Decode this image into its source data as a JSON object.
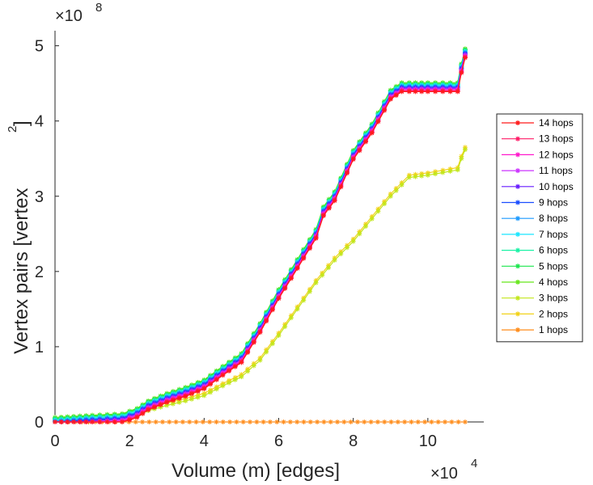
{
  "chart_data": {
    "type": "line",
    "xlabel": "Volume (m) [edges]",
    "ylabel_main": "Vertex pairs [vertex",
    "ylabel_sup": "2",
    "ylabel_close": "]",
    "x_exponent": {
      "base": "×10",
      "power": "4"
    },
    "y_exponent": {
      "base": "×10",
      "power": "8"
    },
    "xlim": [
      0,
      11.5
    ],
    "ylim": [
      0,
      5.2
    ],
    "x_ticks": [
      "0",
      "2",
      "4",
      "6",
      "8",
      "10"
    ],
    "y_ticks": [
      "0",
      "1",
      "2",
      "3",
      "4",
      "5"
    ],
    "legend_placement": "right, outside",
    "series": [
      {
        "name": "14 hops",
        "color": "#ff1a1a",
        "profile": "upper"
      },
      {
        "name": "13 hops",
        "color": "#ff1a66",
        "profile": "upper"
      },
      {
        "name": "12 hops",
        "color": "#ff1acc",
        "profile": "upper"
      },
      {
        "name": "11 hops",
        "color": "#cc33ff",
        "profile": "upper"
      },
      {
        "name": "10 hops",
        "color": "#661aff",
        "profile": "upper"
      },
      {
        "name": "9 hops",
        "color": "#1a4dff",
        "profile": "upper"
      },
      {
        "name": "8 hops",
        "color": "#1a99ff",
        "profile": "upper"
      },
      {
        "name": "7 hops",
        "color": "#1ae6ff",
        "profile": "upper"
      },
      {
        "name": "6 hops",
        "color": "#1af2a6",
        "profile": "upper"
      },
      {
        "name": "5 hops",
        "color": "#1ae64d",
        "profile": "upper"
      },
      {
        "name": "4 hops",
        "color": "#66e61a",
        "profile": "upper"
      },
      {
        "name": "3 hops",
        "color": "#c2e61a",
        "profile": "lower"
      },
      {
        "name": "2 hops",
        "color": "#f2d21a",
        "profile": "lower"
      },
      {
        "name": "1 hops",
        "color": "#ff8c1a",
        "profile": "flat"
      }
    ],
    "profiles": {
      "upper": {
        "x": [
          0,
          1.0,
          1.8,
          2.2,
          2.5,
          3.0,
          3.5,
          4.0,
          4.5,
          5.0,
          5.5,
          6.0,
          6.5,
          7.0,
          7.2,
          7.5,
          8.0,
          8.5,
          9.0,
          9.3,
          9.5,
          10.0,
          10.8,
          10.9,
          11.0
        ],
        "y": [
          0,
          0.03,
          0.05,
          0.12,
          0.22,
          0.32,
          0.4,
          0.5,
          0.68,
          0.85,
          1.25,
          1.7,
          2.1,
          2.5,
          2.8,
          3.0,
          3.55,
          3.9,
          4.35,
          4.45,
          4.45,
          4.45,
          4.45,
          4.7,
          4.9
        ]
      },
      "lower": {
        "x": [
          0,
          1.0,
          1.8,
          2.2,
          2.5,
          3.0,
          3.5,
          4.0,
          4.5,
          5.0,
          5.5,
          6.0,
          6.5,
          7.0,
          7.5,
          8.0,
          8.5,
          9.0,
          9.3,
          9.5,
          10.0,
          10.8,
          10.9,
          11.0
        ],
        "y": [
          0,
          0.02,
          0.04,
          0.08,
          0.15,
          0.22,
          0.28,
          0.35,
          0.48,
          0.6,
          0.82,
          1.15,
          1.5,
          1.85,
          2.15,
          2.4,
          2.7,
          3.0,
          3.15,
          3.25,
          3.28,
          3.35,
          3.5,
          3.62
        ]
      },
      "flat": {
        "x": [
          0,
          11.0
        ],
        "y": [
          0,
          0
        ]
      }
    }
  }
}
